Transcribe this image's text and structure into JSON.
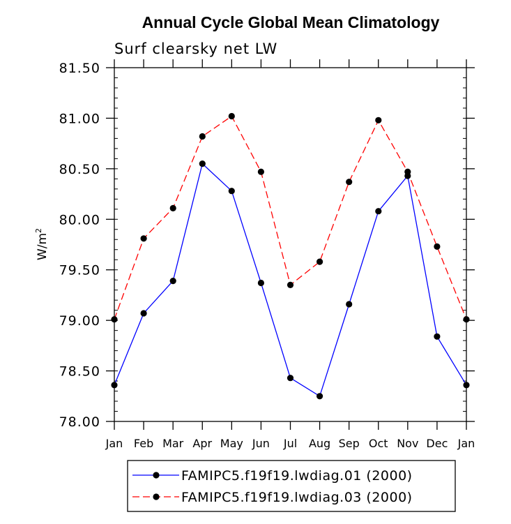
{
  "chart_data": {
    "type": "line",
    "title": "Annual Cycle Global Mean Climatology",
    "subtitle": "Surf clearsky net LW",
    "ylabel": "W/m",
    "ylabel_superscript": "2",
    "ylim": [
      78.0,
      81.5
    ],
    "yticks": [
      "78.00",
      "78.50",
      "79.00",
      "79.50",
      "80.00",
      "80.50",
      "81.00",
      "81.50"
    ],
    "yticks_values": [
      78.0,
      78.5,
      79.0,
      79.5,
      80.0,
      80.5,
      81.0,
      81.5
    ],
    "categories": [
      "Jan",
      "Feb",
      "Mar",
      "Apr",
      "May",
      "Jun",
      "Jul",
      "Aug",
      "Sep",
      "Oct",
      "Nov",
      "Dec",
      "Jan"
    ],
    "grid": false,
    "legend_position": "bottom",
    "series": [
      {
        "name": "FAMIPC5.f19f19.lwdiag.01 (2000)",
        "color": "#0000ff",
        "style": "solid",
        "values": [
          78.36,
          79.07,
          79.39,
          80.55,
          80.28,
          79.37,
          78.43,
          78.25,
          79.16,
          80.08,
          80.43,
          78.84,
          78.36
        ]
      },
      {
        "name": "FAMIPC5.f19f19.lwdiag.03 (2000)",
        "color": "#ff0000",
        "style": "dashed",
        "values": [
          79.01,
          79.81,
          80.11,
          80.82,
          81.02,
          80.47,
          79.35,
          79.58,
          80.37,
          80.98,
          80.47,
          79.73,
          79.01
        ]
      }
    ]
  }
}
